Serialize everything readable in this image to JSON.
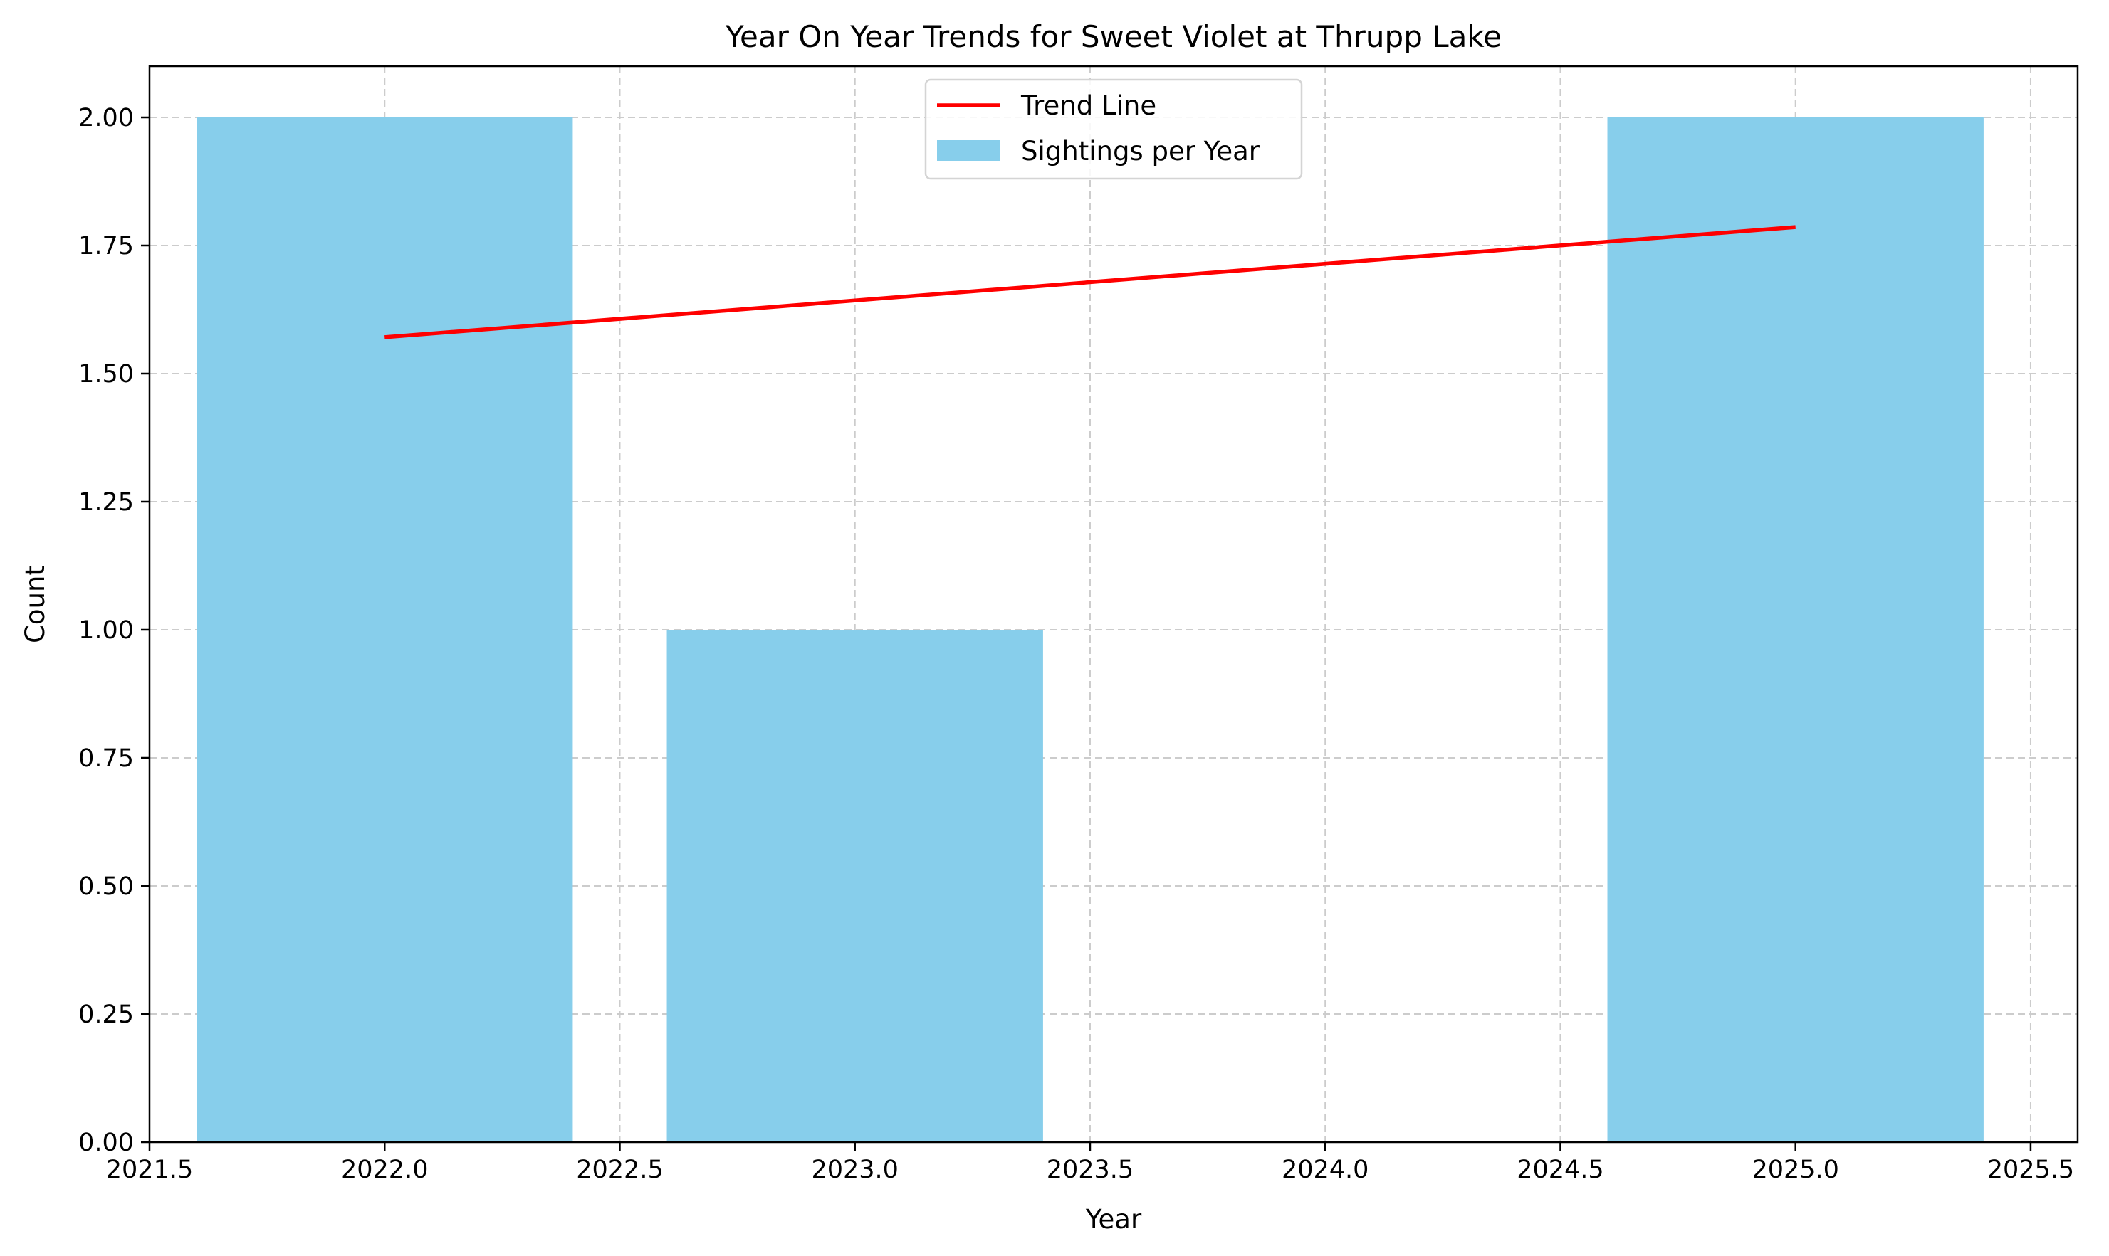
{
  "chart_data": {
    "type": "bar",
    "title": "Year On Year Trends for Sweet Violet at Thrupp Lake",
    "xlabel": "Year",
    "ylabel": "Count",
    "x": [
      2022,
      2023,
      2025
    ],
    "values": [
      2,
      1,
      2
    ],
    "bar_width": 0.8,
    "xlim": [
      2021.5,
      2025.6
    ],
    "ylim": [
      0,
      2.1
    ],
    "xticks": [
      2021.5,
      2022.0,
      2022.5,
      2023.0,
      2023.5,
      2024.0,
      2024.5,
      2025.0,
      2025.5
    ],
    "xtick_labels": [
      "2021.5",
      "2022.0",
      "2022.5",
      "2023.0",
      "2023.5",
      "2024.0",
      "2024.5",
      "2025.0",
      "2025.5"
    ],
    "yticks": [
      0,
      0.25,
      0.5,
      0.75,
      1.0,
      1.25,
      1.5,
      1.75,
      2.0
    ],
    "ytick_labels": [
      "0.00",
      "0.25",
      "0.50",
      "0.75",
      "1.00",
      "1.25",
      "1.50",
      "1.75",
      "2.00"
    ],
    "trend_line": {
      "x": [
        2022,
        2025
      ],
      "y": [
        1.571,
        1.786
      ]
    },
    "grid": true,
    "legend": {
      "placement": "upper-center",
      "entries": [
        {
          "label": "Trend Line",
          "kind": "line",
          "color": "#ff0000"
        },
        {
          "label": "Sightings per Year",
          "kind": "bar",
          "color": "#87ceeb"
        }
      ]
    },
    "colors": {
      "bar": "#87ceeb",
      "trend": "#ff0000",
      "grid": "#cccccc"
    }
  }
}
